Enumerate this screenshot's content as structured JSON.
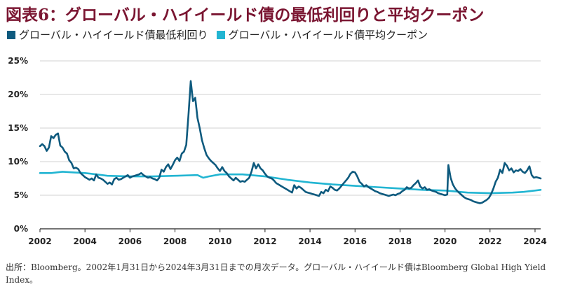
{
  "title": "図表6：グローバル・ハイイールド債の最低利回りと平均クーポン",
  "colors": {
    "title": "#7a1531",
    "series_ytw": "#0e5a7e",
    "series_coupon": "#22b5d2",
    "grid": "#d0d0d0",
    "axis": "#222222"
  },
  "chart_data": {
    "type": "line",
    "title": "",
    "xlabel": "",
    "ylabel": "",
    "xlim": [
      2002.0,
      2024.25
    ],
    "ylim": [
      0,
      25
    ],
    "grid": true,
    "legend": "top-left",
    "x_ticks": [
      "2002",
      "2004",
      "2006",
      "2008",
      "2010",
      "2012",
      "2014",
      "2016",
      "2018",
      "2020",
      "2022",
      "2024"
    ],
    "y_ticks": [
      "0%",
      "5%",
      "10%",
      "15%",
      "20%",
      "25%"
    ],
    "series": [
      {
        "name": "グローバル・ハイイールド債最低利回り",
        "color": "#0e5a7e",
        "points": [
          [
            2002.0,
            12.3
          ],
          [
            2002.1,
            12.6
          ],
          [
            2002.2,
            12.3
          ],
          [
            2002.3,
            11.6
          ],
          [
            2002.4,
            12.1
          ],
          [
            2002.5,
            13.8
          ],
          [
            2002.6,
            13.5
          ],
          [
            2002.7,
            14.0
          ],
          [
            2002.8,
            14.2
          ],
          [
            2002.9,
            12.4
          ],
          [
            2003.0,
            12.1
          ],
          [
            2003.1,
            11.5
          ],
          [
            2003.2,
            11.2
          ],
          [
            2003.3,
            10.2
          ],
          [
            2003.4,
            9.8
          ],
          [
            2003.5,
            9.0
          ],
          [
            2003.6,
            9.1
          ],
          [
            2003.7,
            8.9
          ],
          [
            2003.8,
            8.3
          ],
          [
            2003.9,
            8.0
          ],
          [
            2004.0,
            7.7
          ],
          [
            2004.1,
            7.5
          ],
          [
            2004.2,
            7.3
          ],
          [
            2004.3,
            7.5
          ],
          [
            2004.4,
            7.2
          ],
          [
            2004.5,
            8.1
          ],
          [
            2004.6,
            7.6
          ],
          [
            2004.7,
            7.5
          ],
          [
            2004.8,
            7.3
          ],
          [
            2004.9,
            7.0
          ],
          [
            2005.0,
            6.7
          ],
          [
            2005.1,
            6.9
          ],
          [
            2005.2,
            6.6
          ],
          [
            2005.3,
            7.4
          ],
          [
            2005.4,
            7.6
          ],
          [
            2005.5,
            7.3
          ],
          [
            2005.6,
            7.4
          ],
          [
            2005.7,
            7.6
          ],
          [
            2005.8,
            7.8
          ],
          [
            2005.9,
            8.0
          ],
          [
            2006.0,
            7.6
          ],
          [
            2006.1,
            7.8
          ],
          [
            2006.2,
            7.9
          ],
          [
            2006.3,
            8.0
          ],
          [
            2006.4,
            8.1
          ],
          [
            2006.5,
            8.3
          ],
          [
            2006.6,
            8.0
          ],
          [
            2006.7,
            7.8
          ],
          [
            2006.8,
            7.6
          ],
          [
            2006.9,
            7.7
          ],
          [
            2007.0,
            7.5
          ],
          [
            2007.1,
            7.4
          ],
          [
            2007.2,
            7.2
          ],
          [
            2007.3,
            7.6
          ],
          [
            2007.4,
            8.8
          ],
          [
            2007.5,
            8.5
          ],
          [
            2007.6,
            9.2
          ],
          [
            2007.7,
            9.6
          ],
          [
            2007.8,
            8.9
          ],
          [
            2007.9,
            9.5
          ],
          [
            2008.0,
            10.2
          ],
          [
            2008.1,
            10.6
          ],
          [
            2008.2,
            10.1
          ],
          [
            2008.3,
            11.2
          ],
          [
            2008.4,
            11.5
          ],
          [
            2008.5,
            12.5
          ],
          [
            2008.6,
            17.0
          ],
          [
            2008.7,
            22.0
          ],
          [
            2008.8,
            19.0
          ],
          [
            2008.9,
            19.5
          ],
          [
            2009.0,
            16.5
          ],
          [
            2009.1,
            15.0
          ],
          [
            2009.2,
            13.2
          ],
          [
            2009.3,
            12.0
          ],
          [
            2009.4,
            11.0
          ],
          [
            2009.5,
            10.5
          ],
          [
            2009.6,
            10.1
          ],
          [
            2009.7,
            9.8
          ],
          [
            2009.8,
            9.5
          ],
          [
            2009.9,
            9.0
          ],
          [
            2010.0,
            8.6
          ],
          [
            2010.1,
            9.2
          ],
          [
            2010.2,
            8.6
          ],
          [
            2010.3,
            8.3
          ],
          [
            2010.4,
            7.8
          ],
          [
            2010.5,
            7.5
          ],
          [
            2010.6,
            7.2
          ],
          [
            2010.7,
            7.6
          ],
          [
            2010.8,
            7.3
          ],
          [
            2010.9,
            7.0
          ],
          [
            2011.0,
            7.1
          ],
          [
            2011.1,
            7.0
          ],
          [
            2011.2,
            7.3
          ],
          [
            2011.3,
            7.6
          ],
          [
            2011.4,
            8.5
          ],
          [
            2011.5,
            9.8
          ],
          [
            2011.6,
            9.0
          ],
          [
            2011.7,
            9.6
          ],
          [
            2011.8,
            9.0
          ],
          [
            2011.9,
            8.7
          ],
          [
            2012.0,
            8.2
          ],
          [
            2012.1,
            7.8
          ],
          [
            2012.2,
            7.6
          ],
          [
            2012.3,
            7.5
          ],
          [
            2012.4,
            7.2
          ],
          [
            2012.5,
            6.8
          ],
          [
            2012.6,
            6.6
          ],
          [
            2012.7,
            6.4
          ],
          [
            2012.8,
            6.2
          ],
          [
            2012.9,
            6.0
          ],
          [
            2013.0,
            5.8
          ],
          [
            2013.1,
            5.6
          ],
          [
            2013.2,
            5.4
          ],
          [
            2013.3,
            6.5
          ],
          [
            2013.4,
            6.0
          ],
          [
            2013.5,
            6.3
          ],
          [
            2013.6,
            6.1
          ],
          [
            2013.7,
            5.8
          ],
          [
            2013.8,
            5.5
          ],
          [
            2013.9,
            5.4
          ],
          [
            2014.0,
            5.3
          ],
          [
            2014.1,
            5.2
          ],
          [
            2014.2,
            5.1
          ],
          [
            2014.3,
            5.0
          ],
          [
            2014.4,
            4.9
          ],
          [
            2014.5,
            5.5
          ],
          [
            2014.6,
            5.3
          ],
          [
            2014.7,
            5.8
          ],
          [
            2014.8,
            5.6
          ],
          [
            2014.9,
            6.3
          ],
          [
            2015.0,
            6.1
          ],
          [
            2015.1,
            5.8
          ],
          [
            2015.2,
            5.7
          ],
          [
            2015.3,
            6.0
          ],
          [
            2015.4,
            6.4
          ],
          [
            2015.5,
            6.8
          ],
          [
            2015.6,
            7.2
          ],
          [
            2015.7,
            7.6
          ],
          [
            2015.8,
            8.2
          ],
          [
            2015.9,
            8.5
          ],
          [
            2016.0,
            8.4
          ],
          [
            2016.1,
            7.8
          ],
          [
            2016.2,
            7.0
          ],
          [
            2016.3,
            6.7
          ],
          [
            2016.4,
            6.3
          ],
          [
            2016.5,
            6.5
          ],
          [
            2016.6,
            6.2
          ],
          [
            2016.7,
            6.0
          ],
          [
            2016.8,
            5.8
          ],
          [
            2016.9,
            5.6
          ],
          [
            2017.0,
            5.5
          ],
          [
            2017.1,
            5.3
          ],
          [
            2017.2,
            5.2
          ],
          [
            2017.3,
            5.1
          ],
          [
            2017.4,
            5.0
          ],
          [
            2017.5,
            4.9
          ],
          [
            2017.6,
            5.0
          ],
          [
            2017.7,
            5.1
          ],
          [
            2017.8,
            5.0
          ],
          [
            2017.9,
            5.2
          ],
          [
            2018.0,
            5.3
          ],
          [
            2018.1,
            5.6
          ],
          [
            2018.2,
            5.8
          ],
          [
            2018.3,
            6.2
          ],
          [
            2018.4,
            6.0
          ],
          [
            2018.5,
            6.1
          ],
          [
            2018.6,
            6.5
          ],
          [
            2018.7,
            6.8
          ],
          [
            2018.8,
            7.2
          ],
          [
            2018.9,
            6.3
          ],
          [
            2019.0,
            6.0
          ],
          [
            2019.1,
            6.2
          ],
          [
            2019.2,
            5.8
          ],
          [
            2019.3,
            5.9
          ],
          [
            2019.4,
            5.7
          ],
          [
            2019.5,
            5.6
          ],
          [
            2019.6,
            5.5
          ],
          [
            2019.7,
            5.3
          ],
          [
            2019.8,
            5.2
          ],
          [
            2019.9,
            5.1
          ],
          [
            2020.0,
            5.0
          ],
          [
            2020.1,
            5.1
          ],
          [
            2020.15,
            9.5
          ],
          [
            2020.25,
            7.6
          ],
          [
            2020.35,
            6.6
          ],
          [
            2020.45,
            6.0
          ],
          [
            2020.55,
            5.6
          ],
          [
            2020.65,
            5.3
          ],
          [
            2020.75,
            5.0
          ],
          [
            2020.85,
            4.7
          ],
          [
            2020.95,
            4.5
          ],
          [
            2021.05,
            4.4
          ],
          [
            2021.15,
            4.3
          ],
          [
            2021.25,
            4.1
          ],
          [
            2021.35,
            4.0
          ],
          [
            2021.45,
            3.9
          ],
          [
            2021.55,
            3.8
          ],
          [
            2021.65,
            3.9
          ],
          [
            2021.75,
            4.1
          ],
          [
            2021.85,
            4.3
          ],
          [
            2021.95,
            4.6
          ],
          [
            2022.05,
            5.2
          ],
          [
            2022.15,
            6.0
          ],
          [
            2022.25,
            7.0
          ],
          [
            2022.35,
            7.6
          ],
          [
            2022.45,
            8.8
          ],
          [
            2022.55,
            8.3
          ],
          [
            2022.65,
            9.8
          ],
          [
            2022.75,
            9.4
          ],
          [
            2022.85,
            8.7
          ],
          [
            2022.95,
            9.0
          ],
          [
            2023.05,
            8.4
          ],
          [
            2023.15,
            8.7
          ],
          [
            2023.25,
            8.6
          ],
          [
            2023.35,
            8.9
          ],
          [
            2023.45,
            8.5
          ],
          [
            2023.55,
            8.3
          ],
          [
            2023.65,
            8.7
          ],
          [
            2023.75,
            9.3
          ],
          [
            2023.85,
            8.0
          ],
          [
            2023.95,
            7.6
          ],
          [
            2024.05,
            7.7
          ],
          [
            2024.15,
            7.6
          ],
          [
            2024.25,
            7.5
          ]
        ]
      },
      {
        "name": "グローバル・ハイイールド債平均クーポン",
        "color": "#22b5d2",
        "points": [
          [
            2002.0,
            8.3
          ],
          [
            2002.5,
            8.3
          ],
          [
            2003.0,
            8.5
          ],
          [
            2003.5,
            8.4
          ],
          [
            2004.0,
            8.3
          ],
          [
            2004.5,
            8.1
          ],
          [
            2005.0,
            7.9
          ],
          [
            2006.0,
            7.8
          ],
          [
            2007.0,
            7.8
          ],
          [
            2008.0,
            7.9
          ],
          [
            2009.0,
            8.0
          ],
          [
            2009.25,
            7.6
          ],
          [
            2009.5,
            7.8
          ],
          [
            2010.0,
            8.1
          ],
          [
            2011.0,
            8.1
          ],
          [
            2012.0,
            7.8
          ],
          [
            2013.0,
            7.3
          ],
          [
            2014.0,
            6.9
          ],
          [
            2015.0,
            6.6
          ],
          [
            2016.0,
            6.4
          ],
          [
            2017.0,
            6.2
          ],
          [
            2018.0,
            6.0
          ],
          [
            2019.0,
            5.8
          ],
          [
            2020.0,
            5.7
          ],
          [
            2021.0,
            5.4
          ],
          [
            2022.0,
            5.3
          ],
          [
            2023.0,
            5.4
          ],
          [
            2023.5,
            5.5
          ],
          [
            2024.25,
            5.8
          ]
        ]
      }
    ]
  },
  "source_note": "出所：Bloomberg。2002年1月31日から2024年3月31日までの月次データ。グローバル・ハイイールド債はBloomberg Global High Yield Index。"
}
